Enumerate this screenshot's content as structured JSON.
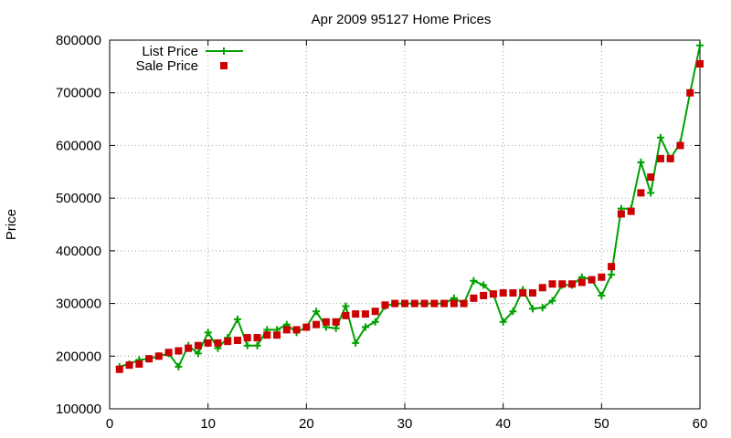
{
  "chart_data": {
    "type": "line",
    "title": "Apr 2009 95127 Home Prices",
    "ylabel": "Price",
    "xlabel": "",
    "xlim": [
      0,
      60
    ],
    "ylim": [
      100000,
      800000
    ],
    "xticks": [
      "0",
      "10",
      "20",
      "30",
      "40",
      "50",
      "60"
    ],
    "yticks": [
      "100000",
      "200000",
      "300000",
      "400000",
      "500000",
      "600000",
      "700000",
      "800000"
    ],
    "grid": true,
    "legend_position": "top-left",
    "series": [
      {
        "name": "List Price",
        "style": "line-plus",
        "color": "#00a000",
        "x": [
          1,
          2,
          3,
          4,
          5,
          6,
          7,
          8,
          9,
          10,
          11,
          12,
          13,
          14,
          15,
          16,
          17,
          18,
          19,
          20,
          21,
          22,
          23,
          24,
          25,
          26,
          27,
          28,
          29,
          30,
          31,
          32,
          33,
          34,
          35,
          36,
          37,
          38,
          39,
          40,
          41,
          42,
          43,
          44,
          45,
          46,
          47,
          48,
          49,
          50,
          51,
          52,
          53,
          54,
          55,
          56,
          57,
          58,
          59,
          60
        ],
        "values": [
          180000,
          185000,
          193000,
          195000,
          200000,
          205000,
          180000,
          220000,
          205000,
          245000,
          215000,
          235000,
          270000,
          220000,
          220000,
          250000,
          250000,
          260000,
          245000,
          255000,
          285000,
          255000,
          253000,
          295000,
          225000,
          255000,
          265000,
          295000,
          300000,
          300000,
          300000,
          300000,
          300000,
          300000,
          310000,
          300000,
          343000,
          335000,
          318000,
          265000,
          285000,
          326000,
          290000,
          292000,
          305000,
          335000,
          335000,
          350000,
          345000,
          315000,
          355000,
          480000,
          480000,
          568000,
          510000,
          615000,
          575000,
          605000,
          700000,
          790000
        ]
      },
      {
        "name": "Sale Price",
        "style": "square-points",
        "color": "#cc0000",
        "x": [
          1,
          2,
          3,
          4,
          5,
          6,
          7,
          8,
          9,
          10,
          11,
          12,
          13,
          14,
          15,
          16,
          17,
          18,
          19,
          20,
          21,
          22,
          23,
          24,
          25,
          26,
          27,
          28,
          29,
          30,
          31,
          32,
          33,
          34,
          35,
          36,
          37,
          38,
          39,
          40,
          41,
          42,
          43,
          44,
          45,
          46,
          47,
          48,
          49,
          50,
          51,
          52,
          53,
          54,
          55,
          56,
          57,
          58,
          59,
          60
        ],
        "values": [
          175000,
          183000,
          185000,
          195000,
          200000,
          207000,
          210000,
          215000,
          220000,
          225000,
          225000,
          228000,
          230000,
          235000,
          235000,
          240000,
          240000,
          250000,
          250000,
          255000,
          260000,
          265000,
          265000,
          277000,
          280000,
          280000,
          285000,
          297000,
          300000,
          300000,
          300000,
          300000,
          300000,
          300000,
          300000,
          300000,
          310000,
          315000,
          318000,
          320000,
          320000,
          320000,
          320000,
          330000,
          337000,
          337000,
          337000,
          340000,
          345000,
          350000,
          370000,
          470000,
          475000,
          510000,
          540000,
          575000,
          575000,
          600000,
          700000,
          755000
        ]
      }
    ]
  }
}
